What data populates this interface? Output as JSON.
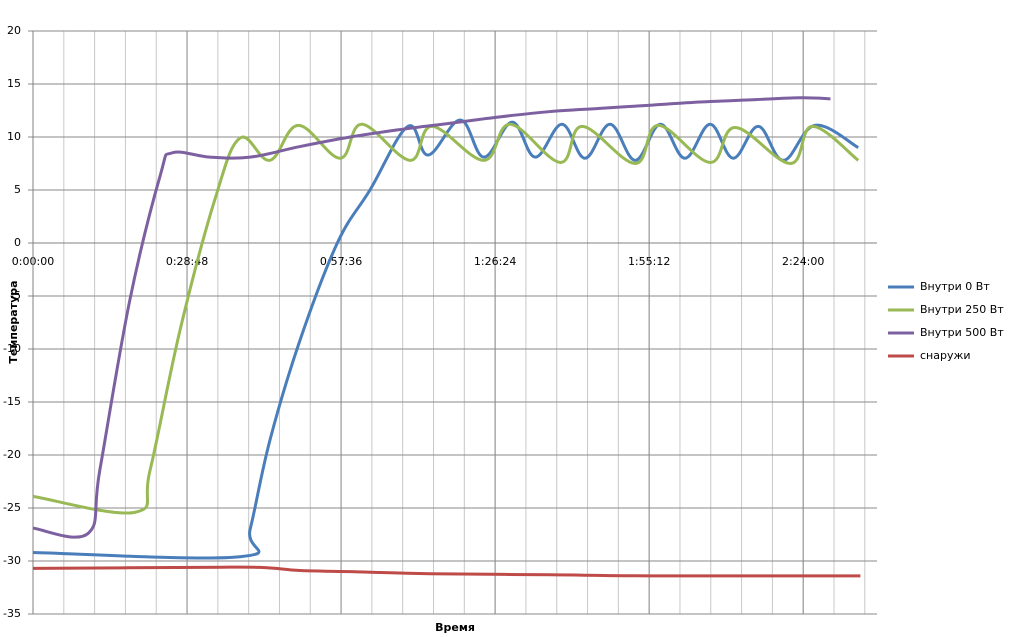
{
  "chart_data": {
    "type": "line",
    "x_label": "Время",
    "y_label": "Температура",
    "xlim": [
      0,
      157.8
    ],
    "ylim": [
      -35,
      20
    ],
    "xticks": [
      {
        "value": 0,
        "label": "0:00:00"
      },
      {
        "value": 28.8,
        "label": "0:28:48"
      },
      {
        "value": 57.6,
        "label": "0:57:36"
      },
      {
        "value": 86.4,
        "label": "1:26:24"
      },
      {
        "value": 115.2,
        "label": "1:55:12"
      },
      {
        "value": 144,
        "label": "2:24:00"
      }
    ],
    "yticks": [
      20,
      15,
      10,
      5,
      0,
      -5,
      -10,
      -15,
      -20,
      -25,
      -30,
      -35
    ],
    "grid": true,
    "legend": "right",
    "series": [
      {
        "name": "Внутри 0 Вт",
        "color": "#4a7ebb",
        "x": [
          0,
          38.7,
          40.6,
          44.3,
          49.9,
          56.9,
          63.0,
          70.1,
          73.9,
          79.9,
          84.3,
          89.6,
          93.9,
          98.9,
          103.2,
          107.9,
          112.6,
          117.3,
          121.9,
          126.6,
          130.9,
          135.6,
          140.3,
          146.2,
          154.3
        ],
        "values": [
          -29.2,
          -29.6,
          -27,
          -18.6,
          -9.2,
          0,
          5,
          11,
          8.3,
          11.6,
          8.1,
          11.4,
          8.1,
          11.2,
          8.0,
          11.2,
          7.8,
          11.2,
          8.0,
          11.2,
          8.0,
          11,
          7.8,
          11.1,
          9.0
        ]
      },
      {
        "name": "Внутри 250 Вт",
        "color": "#98b954",
        "x": [
          0,
          19.1,
          21.9,
          27.5,
          34.0,
          38.7,
          44.3,
          49.6,
          57.4,
          61.5,
          70.5,
          74.6,
          84.3,
          89.2,
          98.6,
          102.7,
          112.6,
          116.9,
          126.6,
          131.3,
          141.6,
          145.7,
          154.3
        ],
        "values": [
          -23.9,
          -25.4,
          -21.4,
          -8.2,
          4.1,
          9.9,
          7.8,
          11.1,
          8.0,
          11.2,
          7.8,
          11.0,
          7.8,
          11.2,
          7.6,
          11.0,
          7.5,
          11.1,
          7.6,
          10.9,
          7.5,
          11.0,
          7.8
        ]
      },
      {
        "name": "Внутри 500 Вт",
        "color": "#7d60a0",
        "x": [
          0,
          10.3,
          12.5,
          18.1,
          23.8,
          26.0,
          33.1,
          40.6,
          49.9,
          59.3,
          68.6,
          78.0,
          87.3,
          96.7,
          106.0,
          115.4,
          124.7,
          134.1,
          143.4,
          149.1
        ],
        "values": [
          -26.9,
          -27.4,
          -21.4,
          -5.4,
          6.4,
          8.5,
          8.1,
          8.1,
          9.1,
          10.0,
          10.7,
          11.3,
          11.9,
          12.4,
          12.7,
          13.0,
          13.3,
          13.5,
          13.7,
          13.6
        ]
      },
      {
        "name": "снаружи",
        "color": "#be4b48",
        "x": [
          0,
          31.2,
          42.5,
          49.9,
          59.3,
          74.2,
          96.7,
          115.4,
          154.7
        ],
        "values": [
          -30.7,
          -30.6,
          -30.6,
          -30.9,
          -31.0,
          -31.2,
          -31.3,
          -31.4,
          -31.4
        ]
      }
    ]
  }
}
